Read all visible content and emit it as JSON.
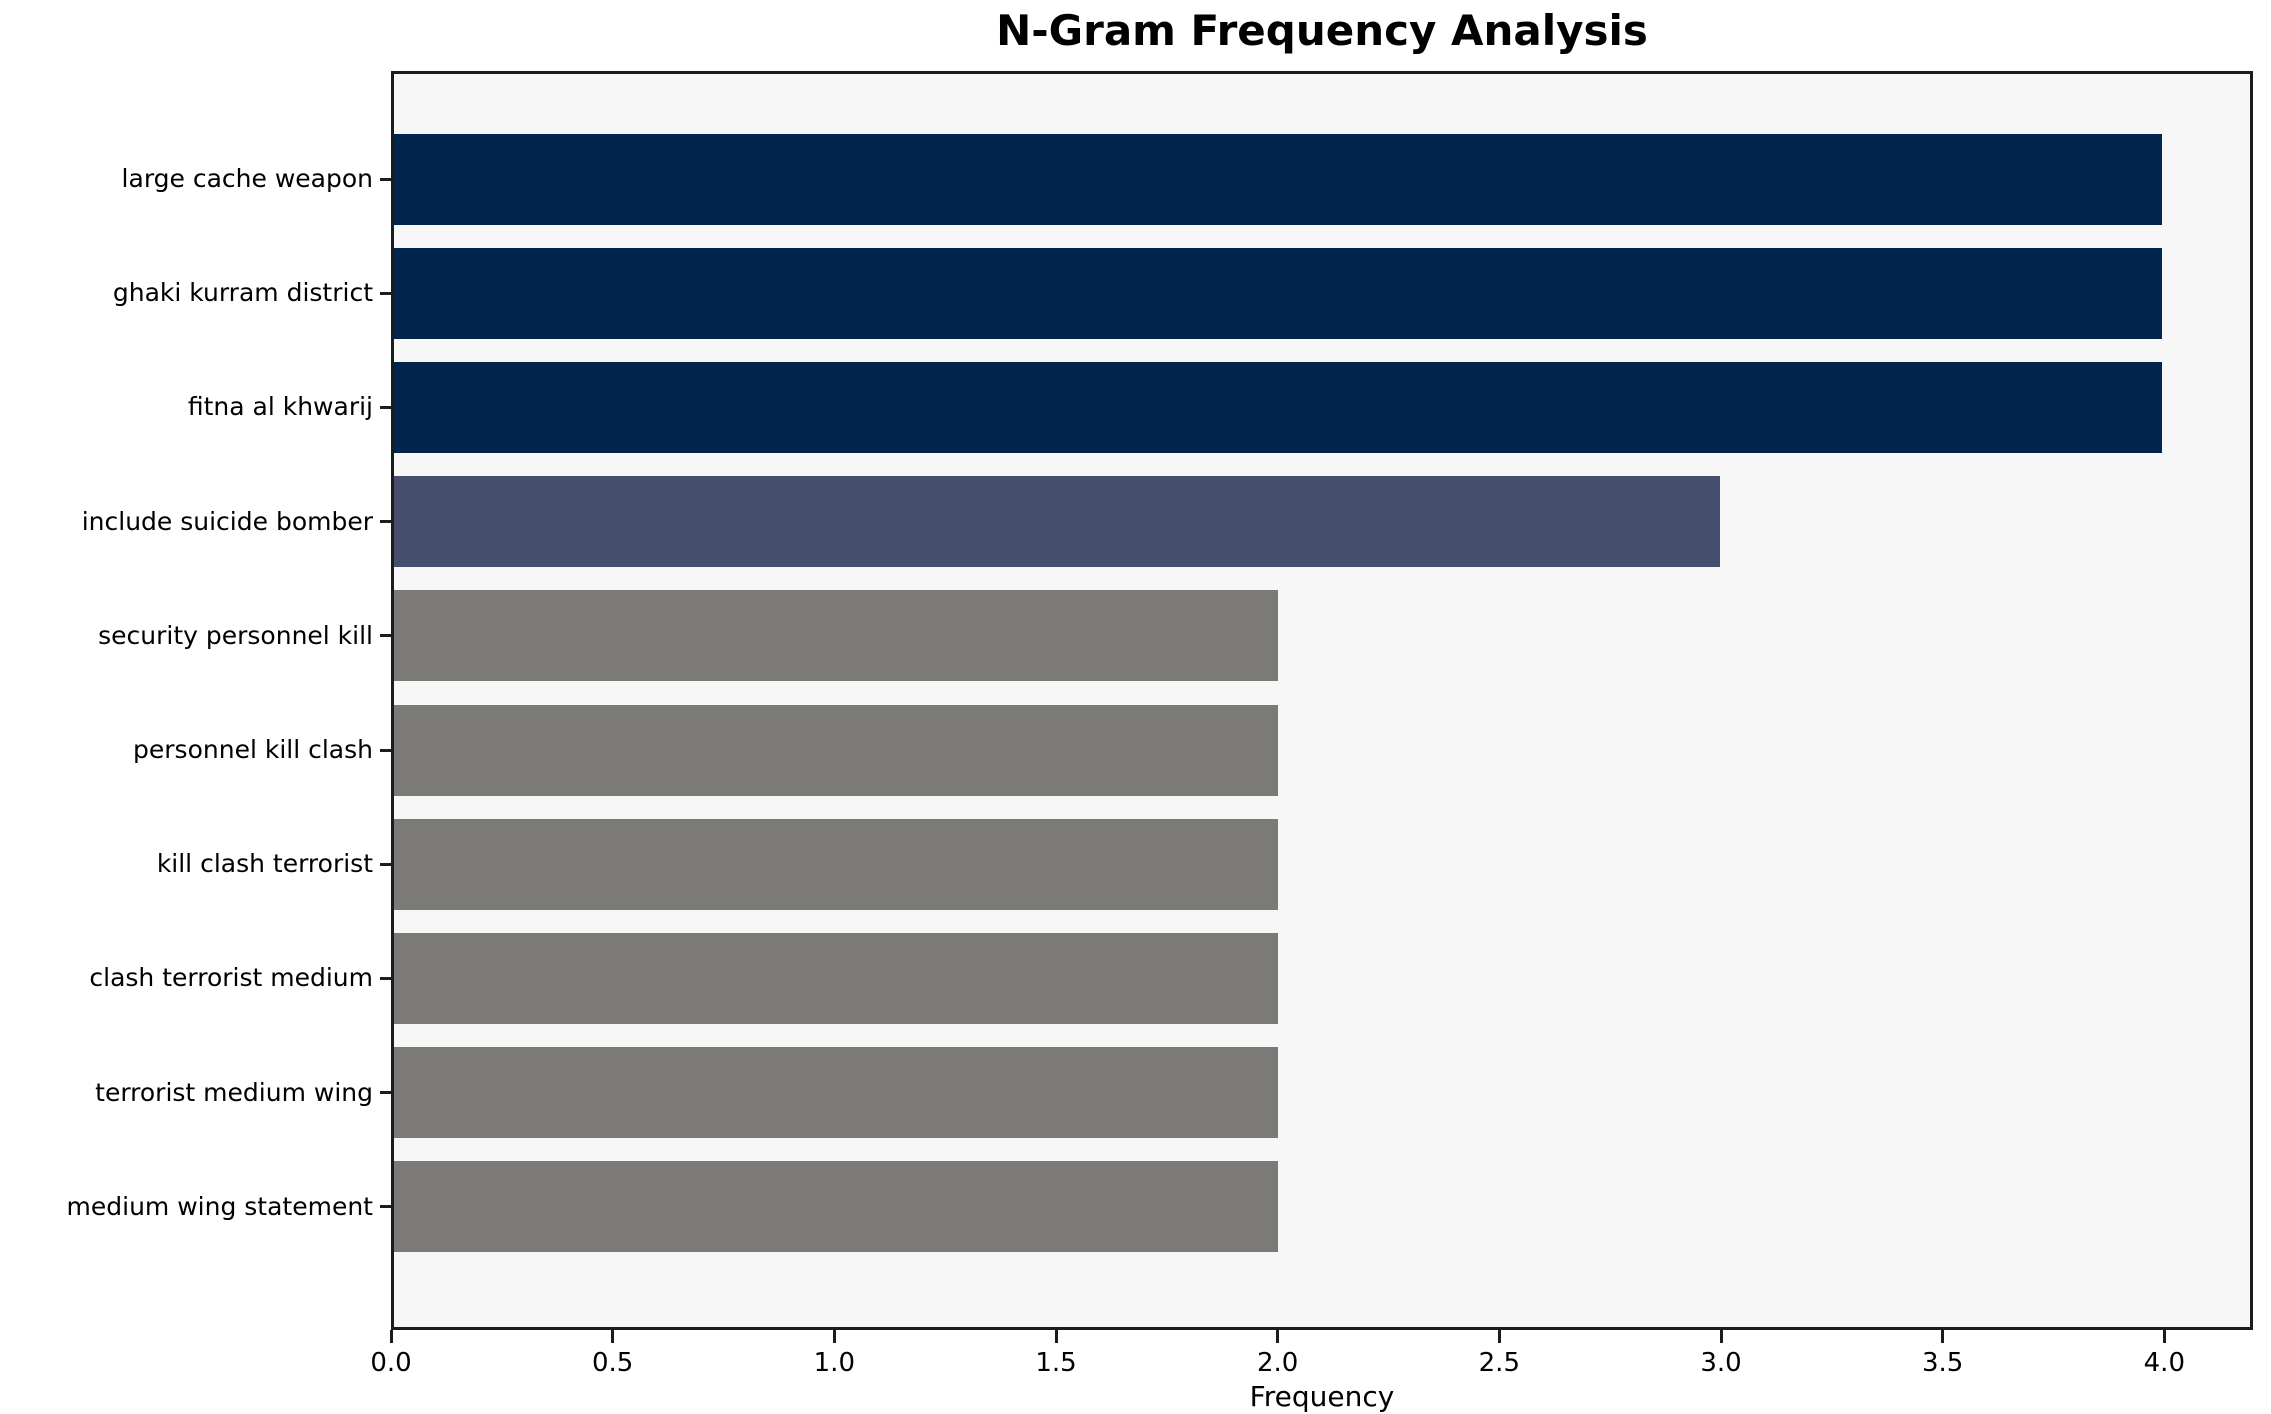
{
  "chart_data": {
    "type": "bar",
    "orientation": "horizontal",
    "title": "N-Gram Frequency Analysis",
    "xlabel": "Frequency",
    "ylabel": "",
    "categories": [
      "large cache weapon",
      "ghaki kurram district",
      "fitna al khwarij",
      "include suicide bomber",
      "security personnel kill",
      "personnel kill clash",
      "kill clash terrorist",
      "clash terrorist medium",
      "terrorist medium wing",
      "medium wing statement"
    ],
    "values": [
      4,
      4,
      4,
      3,
      2,
      2,
      2,
      2,
      2,
      2
    ],
    "bar_colors": [
      "#02254E",
      "#02254E",
      "#02254E",
      "#454F6D",
      "#7B7A76",
      "#7B7A76",
      "#7B7A76",
      "#7B7A76",
      "#7B7A76",
      "#7B7A76"
    ],
    "xlim": [
      0,
      4.2
    ],
    "x_ticks": [
      "0.0",
      "0.5",
      "1.0",
      "1.5",
      "2.0",
      "2.5",
      "3.0",
      "3.5",
      "4.0"
    ],
    "x_tick_values": [
      0.0,
      0.5,
      1.0,
      1.5,
      2.0,
      2.5,
      3.0,
      3.5,
      4.0
    ],
    "grid": false,
    "legend": null,
    "plot_background": "#f7f7f7",
    "page_background": "#ffffff",
    "spine_color": "#1c1c1c"
  }
}
